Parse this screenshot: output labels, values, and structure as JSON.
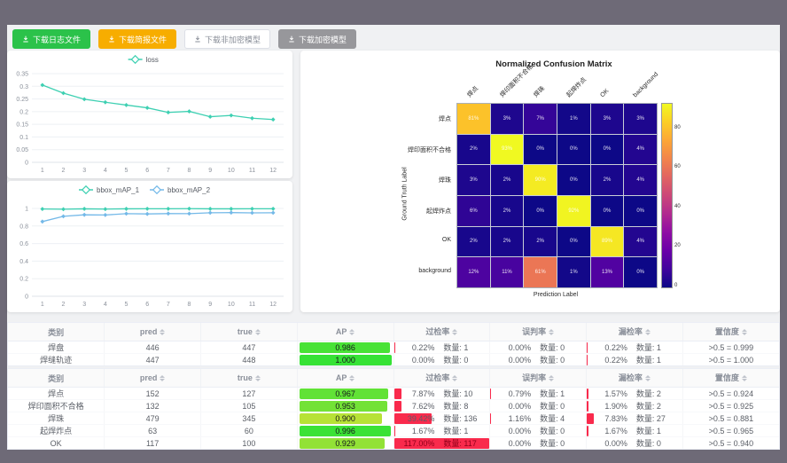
{
  "toolbar": {
    "buttons": [
      {
        "name": "download-log-button",
        "label": "下载日志文件",
        "bg": "#2bc24a",
        "color": "#ffffff",
        "border": "#2bc24a"
      },
      {
        "name": "download-report-button",
        "label": "下载简报文件",
        "bg": "#f7ad00",
        "color": "#ffffff",
        "border": "#f7ad00"
      },
      {
        "name": "download-unencrypted-model-button",
        "label": "下载非加密模型",
        "bg": "#ffffff",
        "color": "#8a8f99",
        "border": "#dcdfe6"
      },
      {
        "name": "download-encrypted-model-button",
        "label": "下载加密模型",
        "bg": "#97979b",
        "color": "#ffffff",
        "border": "#97979b"
      }
    ],
    "icon": "download-icon"
  },
  "chart_data": [
    {
      "id": "loss",
      "type": "line",
      "legend_position": "top",
      "x": [
        1,
        2,
        3,
        4,
        5,
        6,
        7,
        8,
        9,
        10,
        11,
        12
      ],
      "yticks": [
        0,
        0.05,
        0.1,
        0.15,
        0.2,
        0.25,
        0.3,
        0.35
      ],
      "ymax": 0.35,
      "series": [
        {
          "name": "loss",
          "color": "#3ed0b2",
          "values": [
            0.305,
            0.273,
            0.249,
            0.237,
            0.226,
            0.215,
            0.197,
            0.201,
            0.18,
            0.185,
            0.174,
            0.169
          ]
        }
      ]
    },
    {
      "id": "bbox_map",
      "type": "line",
      "legend_position": "top",
      "x": [
        1,
        2,
        3,
        4,
        5,
        6,
        7,
        8,
        9,
        10,
        11,
        12
      ],
      "yticks": [
        0,
        0.2,
        0.4,
        0.6,
        0.8,
        1
      ],
      "ymax": 1.05,
      "series": [
        {
          "name": "bbox_mAP_1",
          "color": "#3ed0b2",
          "values": [
            0.993,
            0.991,
            0.995,
            0.992,
            0.995,
            0.996,
            0.996,
            0.997,
            0.995,
            0.995,
            0.996,
            0.996
          ]
        },
        {
          "name": "bbox_mAP_2",
          "color": "#74b9e8",
          "values": [
            0.85,
            0.91,
            0.927,
            0.925,
            0.94,
            0.937,
            0.941,
            0.94,
            0.95,
            0.952,
            0.949,
            0.95
          ]
        }
      ]
    },
    {
      "id": "confusion_matrix",
      "type": "heatmap",
      "colormap": "plasma",
      "title": "Normalized Confusion Matrix",
      "xlabel": "Prediction Label",
      "ylabel": "Ground Truth Label",
      "labels": [
        "焊点",
        "焊印面积不合格",
        "焊珠",
        "起焊炸点",
        "OK",
        "background"
      ],
      "values": [
        [
          81,
          3,
          7,
          1,
          3,
          3
        ],
        [
          2,
          93,
          0,
          0,
          0,
          4
        ],
        [
          3,
          2,
          90,
          0,
          2,
          4
        ],
        [
          6,
          2,
          0,
          92,
          0,
          0
        ],
        [
          2,
          2,
          2,
          0,
          89,
          4
        ],
        [
          12,
          11,
          61,
          1,
          13,
          0
        ]
      ],
      "vmax": 93,
      "colorbar_ticks": [
        0,
        20,
        40,
        60,
        80
      ],
      "unit": "%"
    }
  ],
  "tables": {
    "qty_label": "数量:",
    "columns": [
      {
        "key": "cls",
        "label": "类别",
        "sortable": false
      },
      {
        "key": "pred",
        "label": "pred",
        "sortable": true
      },
      {
        "key": "true",
        "label": "true",
        "sortable": true
      },
      {
        "key": "ap",
        "label": "AP",
        "sortable": true
      },
      {
        "key": "over",
        "label": "过检率",
        "sortable": true
      },
      {
        "key": "mis",
        "label": "误判率",
        "sortable": true
      },
      {
        "key": "miss",
        "label": "漏检率",
        "sortable": true
      },
      {
        "key": "conf",
        "label": "置信度",
        "sortable": true
      }
    ],
    "groups": [
      {
        "rows": [
          {
            "cls": "焊盘",
            "pred": "446",
            "true": "447",
            "ap": "0.986",
            "over": {
              "pct": "0.22%",
              "qty": "1"
            },
            "mis": {
              "pct": "0.00%",
              "qty": "0"
            },
            "miss": {
              "pct": "0.22%",
              "qty": "1"
            },
            "conf": ">0.5 = 0.999"
          },
          {
            "cls": "焊缝轨迹",
            "pred": "447",
            "true": "448",
            "ap": "1.000",
            "over": {
              "pct": "0.00%",
              "qty": "0"
            },
            "mis": {
              "pct": "0.00%",
              "qty": "0"
            },
            "miss": {
              "pct": "0.22%",
              "qty": "1"
            },
            "conf": ">0.5 = 1.000"
          }
        ]
      },
      {
        "rows": [
          {
            "cls": "焊点",
            "pred": "152",
            "true": "127",
            "ap": "0.967",
            "over": {
              "pct": "7.87%",
              "qty": "10"
            },
            "mis": {
              "pct": "0.79%",
              "qty": "1"
            },
            "miss": {
              "pct": "1.57%",
              "qty": "2"
            },
            "conf": ">0.5 = 0.924"
          },
          {
            "cls": "焊印面积不合格",
            "pred": "132",
            "true": "105",
            "ap": "0.953",
            "over": {
              "pct": "7.62%",
              "qty": "8"
            },
            "mis": {
              "pct": "0.00%",
              "qty": "0"
            },
            "miss": {
              "pct": "1.90%",
              "qty": "2"
            },
            "conf": ">0.5 = 0.925"
          },
          {
            "cls": "焊珠",
            "pred": "479",
            "true": "345",
            "ap": "0.900",
            "over": {
              "pct": "39.42%",
              "qty": "136"
            },
            "mis": {
              "pct": "1.16%",
              "qty": "4"
            },
            "miss": {
              "pct": "7.83%",
              "qty": "27"
            },
            "conf": ">0.5 = 0.881"
          },
          {
            "cls": "起焊炸点",
            "pred": "63",
            "true": "60",
            "ap": "0.996",
            "over": {
              "pct": "1.67%",
              "qty": "1"
            },
            "mis": {
              "pct": "0.00%",
              "qty": "0"
            },
            "miss": {
              "pct": "1.67%",
              "qty": "1"
            },
            "conf": ">0.5 = 0.965"
          },
          {
            "cls": "OK",
            "pred": "117",
            "true": "100",
            "ap": "0.929",
            "over": {
              "pct": "117.00%",
              "qty": "117"
            },
            "mis": {
              "pct": "0.00%",
              "qty": "0"
            },
            "miss": {
              "pct": "0.00%",
              "qty": "0"
            },
            "conf": ">0.5 = 0.940"
          }
        ]
      }
    ]
  }
}
